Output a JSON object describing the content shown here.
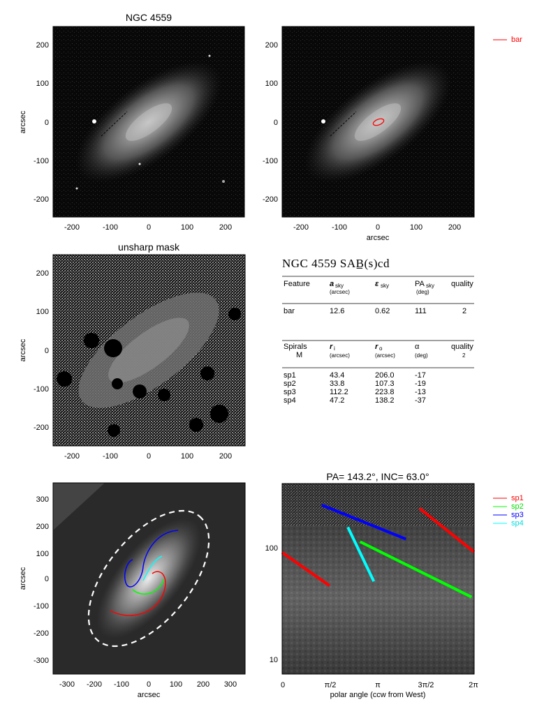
{
  "panels": {
    "p1": {
      "title": "NGC 4559",
      "ylabel": "arcsec",
      "xlabel": "",
      "xticks": [
        "-200",
        "-100",
        "0",
        "100",
        "200"
      ],
      "yticks": [
        "200",
        "100",
        "0",
        "-100",
        "-200"
      ]
    },
    "p2": {
      "title": "",
      "ylabel": "",
      "xlabel": "arcsec",
      "xticks": [
        "-200",
        "-100",
        "0",
        "100",
        "200"
      ],
      "yticks": [
        "200",
        "100",
        "0",
        "-100",
        "-200"
      ],
      "legend": [
        {
          "name": "bar",
          "color": "#ff0000"
        }
      ]
    },
    "p3": {
      "title": "unsharp mask",
      "ylabel": "arcsec",
      "xlabel": "",
      "xticks": [
        "-200",
        "-100",
        "0",
        "100",
        "200"
      ],
      "yticks": [
        "200",
        "100",
        "0",
        "-100",
        "-200"
      ]
    },
    "p5": {
      "title": "",
      "ylabel": "arcsec",
      "xlabel": "arcsec",
      "xticks": [
        "-300",
        "-200",
        "-100",
        "0",
        "100",
        "200",
        "300"
      ],
      "yticks": [
        "300",
        "200",
        "100",
        "0",
        "-100",
        "-200",
        "-300"
      ]
    },
    "p6": {
      "title": "PA= 143.2°, INC=  63.0°",
      "xlabel": "polar angle (ccw from West)",
      "xticks": [
        "0",
        "π/2",
        "π",
        "3π/2",
        "2π"
      ],
      "yticks": [
        "100",
        "10"
      ],
      "legend": [
        {
          "name": "sp1",
          "color": "#ff0000"
        },
        {
          "name": "sp2",
          "color": "#00ff00"
        },
        {
          "name": "sp3",
          "color": "#0000ff"
        },
        {
          "name": "sp4",
          "color": "#00ffff"
        }
      ]
    }
  },
  "table": {
    "heading": "NGC 4559  SAB̲(s)cd",
    "bar_header": {
      "c1": "Feature",
      "c2": "a",
      "c2sub": "sky",
      "c2unit": "(arcsec)",
      "c3": "ε",
      "c3sub": "sky",
      "c4": "PA",
      "c4sub": "sky",
      "c4unit": "(deg)",
      "c5": "quality"
    },
    "bar_row": {
      "c1": "bar",
      "c2": "12.6",
      "c3": "0.62",
      "c4": "111",
      "c5": "2"
    },
    "sp_header": {
      "c1": "Spirals",
      "c1b": "M",
      "c2": "r",
      "c2sub": "i",
      "c2unit": "(arcsec)",
      "c3": "r",
      "c3sub": "o",
      "c3unit": "(arcsec)",
      "c4": "α",
      "c4unit": "(deg)",
      "c5": "quality",
      "c5b": "2"
    },
    "sp_rows": [
      {
        "c1": "sp1",
        "c2": "43.4",
        "c3": "206.0",
        "c4": "-17"
      },
      {
        "c1": "sp2",
        "c2": "33.8",
        "c3": "107.3",
        "c4": "-19"
      },
      {
        "c1": "sp3",
        "c2": "112.2",
        "c3": "223.8",
        "c4": "-13"
      },
      {
        "c1": "sp4",
        "c2": "47.2",
        "c3": "138.2",
        "c4": "-37"
      }
    ]
  },
  "chart_data": [
    {
      "type": "image",
      "title": "NGC 4559",
      "xlabel": "",
      "ylabel": "arcsec",
      "xlim": [
        -250,
        250
      ],
      "ylim": [
        -250,
        250
      ]
    },
    {
      "type": "image",
      "title": "",
      "xlabel": "arcsec",
      "ylabel": "",
      "xlim": [
        -250,
        250
      ],
      "ylim": [
        -250,
        250
      ],
      "overlay": [
        {
          "name": "bar",
          "type": "ellipse",
          "x": 0,
          "y": 0,
          "a": 12.6,
          "pa_deg": 111,
          "color": "#ff0000"
        }
      ]
    },
    {
      "type": "image",
      "title": "unsharp mask",
      "xlabel": "",
      "ylabel": "arcsec",
      "xlim": [
        -250,
        250
      ],
      "ylim": [
        -250,
        250
      ]
    },
    {
      "type": "image",
      "title": "",
      "xlabel": "arcsec",
      "ylabel": "arcsec",
      "xlim": [
        -350,
        350
      ],
      "ylim": [
        -350,
        350
      ],
      "overlay": [
        {
          "name": "outer ellipse",
          "type": "ellipse",
          "x": 0,
          "y": 0,
          "a": 300,
          "b": 160,
          "pa_deg": 143,
          "color": "#ffffff",
          "style": "dashed"
        }
      ]
    },
    {
      "type": "line",
      "title": "PA= 143.2°, INC=  63.0°",
      "xlabel": "polar angle (ccw from West)",
      "ylabel": "",
      "xlim": [
        0,
        6.2832
      ],
      "ylim": [
        7,
        350
      ],
      "yscale": "log",
      "legend": "right",
      "series": [
        {
          "name": "sp1",
          "color": "#ff0000",
          "segments": [
            [
              [
                0.0,
                85
              ],
              [
                1.55,
                43
              ]
            ],
            [
              [
                4.5,
                210
              ],
              [
                6.28,
                86
              ]
            ]
          ]
        },
        {
          "name": "sp2",
          "color": "#00ff00",
          "segments": [
            [
              [
                2.55,
                106
              ],
              [
                6.2,
                34
              ]
            ]
          ]
        },
        {
          "name": "sp3",
          "color": "#0000ff",
          "segments": [
            [
              [
                1.3,
                225
              ],
              [
                4.05,
                112
              ]
            ]
          ]
        },
        {
          "name": "sp4",
          "color": "#00ffff",
          "segments": [
            [
              [
                2.15,
                143
              ],
              [
                3.0,
                47
              ]
            ]
          ]
        }
      ]
    }
  ]
}
